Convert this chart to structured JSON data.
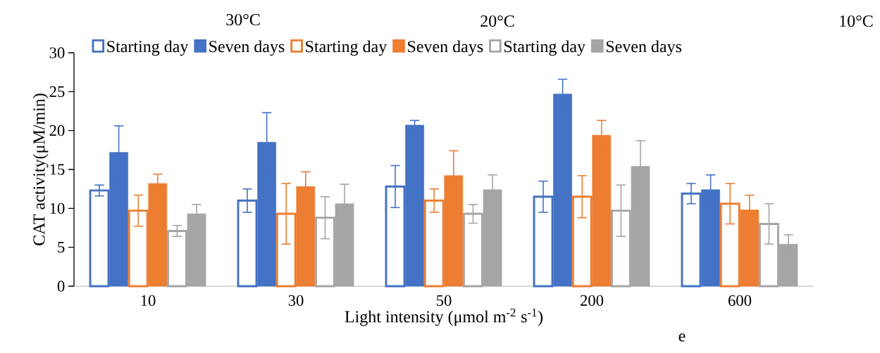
{
  "chart_data": {
    "type": "bar",
    "xlabel": "Light intensity (μmol m$^{-2}$ s$^{-1}$)",
    "ylabel": "CAT activity(μM/min)",
    "categories": [
      "10",
      "30",
      "50",
      "200",
      "600"
    ],
    "series": [
      {
        "name": "Starting day",
        "color": "#4472c4",
        "values": [
          12.3,
          11.0,
          12.8,
          11.5,
          11.9
        ],
        "errors": [
          0.7,
          1.5,
          2.7,
          2.0,
          1.3
        ]
      },
      {
        "name": "Seven days",
        "color": "#4472c4",
        "values": [
          17.2,
          18.5,
          20.7,
          24.7,
          12.4
        ],
        "errors": [
          3.4,
          3.8,
          0.6,
          1.9,
          1.9
        ]
      },
      {
        "name": "Starting day",
        "color": "#ed7d31",
        "values": [
          9.7,
          9.3,
          11.0,
          11.5,
          10.6
        ],
        "errors": [
          2.0,
          3.9,
          1.5,
          2.7,
          2.6
        ]
      },
      {
        "name": "Seven days",
        "color": "#ed7d31",
        "values": [
          13.2,
          12.8,
          14.2,
          19.4,
          9.8
        ],
        "errors": [
          1.2,
          1.9,
          3.2,
          1.9,
          1.9
        ]
      },
      {
        "name": "Starting day",
        "color": "#a5a5a5",
        "values": [
          7.1,
          8.8,
          9.3,
          9.7,
          8.0
        ],
        "errors": [
          0.7,
          2.7,
          1.2,
          3.3,
          2.6
        ]
      },
      {
        "name": "Seven days",
        "color": "#a5a5a5",
        "values": [
          9.3,
          10.6,
          12.4,
          15.4,
          5.4
        ],
        "errors": [
          1.2,
          2.5,
          1.9,
          3.3,
          1.2
        ]
      }
    ],
    "ylim": [
      0,
      30
    ],
    "yticks": [
      0,
      5,
      10,
      15,
      20,
      25,
      30
    ],
    "legend": "top",
    "annotations": [
      "30°C",
      "20°C",
      "10°C",
      "e"
    ]
  }
}
